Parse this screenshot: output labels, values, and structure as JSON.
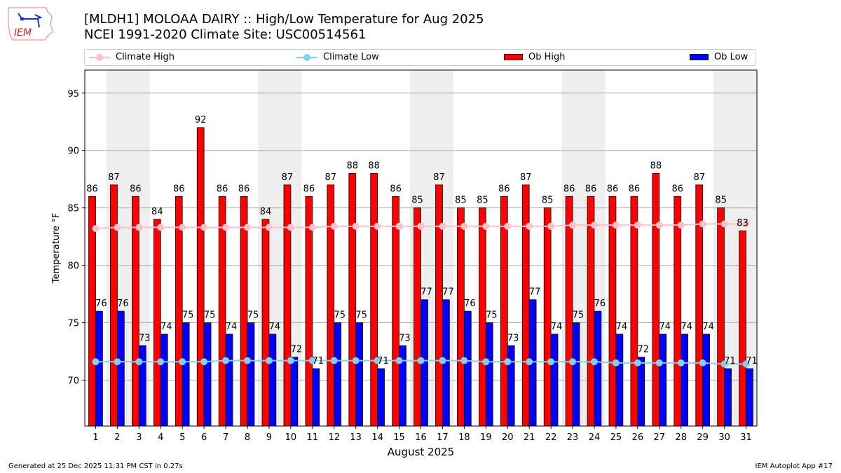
{
  "header": {
    "title_line1": "[MLDH1] MOLOAA DAIRY :: High/Low Temperature for Aug 2025",
    "title_line2": "NCEI 1991-2020 Climate Site: USC00514561",
    "logo_text": "IEM"
  },
  "footer": {
    "generated": "Generated at 25 Dec 2025 11:31 PM CST in 0.27s",
    "app": "IEM Autoplot App #17"
  },
  "colors": {
    "ob_high": "#ff0000",
    "ob_low": "#0000ff",
    "climate_high": "#ffc0cb",
    "climate_low": "#87ceeb",
    "weekend_shade": "#eeeeee",
    "grid": "#b0b0b0"
  },
  "chart_data": {
    "type": "bar",
    "title": "[MLDH1] MOLOAA DAIRY :: High/Low Temperature for Aug 2025",
    "subtitle": "NCEI 1991-2020 Climate Site: USC00514561",
    "xlabel": "August 2025",
    "ylabel": "Temperature °F",
    "xlim": [
      0.5,
      31.5
    ],
    "ylim": [
      66.0,
      97.0
    ],
    "yticks": [
      70,
      75,
      80,
      85,
      90,
      95
    ],
    "grid": "horizontal",
    "legend_position": "top",
    "categories": [
      1,
      2,
      3,
      4,
      5,
      6,
      7,
      8,
      9,
      10,
      11,
      12,
      13,
      14,
      15,
      16,
      17,
      18,
      19,
      20,
      21,
      22,
      23,
      24,
      25,
      26,
      27,
      28,
      29,
      30,
      31
    ],
    "weekend_days": [
      2,
      3,
      9,
      10,
      16,
      17,
      23,
      24,
      30,
      31
    ],
    "series": [
      {
        "name": "Climate High",
        "kind": "line",
        "values": [
          83.2,
          83.3,
          83.3,
          83.3,
          83.3,
          83.3,
          83.3,
          83.3,
          83.3,
          83.3,
          83.3,
          83.4,
          83.4,
          83.4,
          83.4,
          83.4,
          83.4,
          83.4,
          83.4,
          83.4,
          83.4,
          83.4,
          83.5,
          83.5,
          83.5,
          83.5,
          83.5,
          83.5,
          83.6,
          83.6,
          83.6
        ]
      },
      {
        "name": "Climate Low",
        "kind": "line",
        "values": [
          71.6,
          71.6,
          71.6,
          71.6,
          71.6,
          71.6,
          71.7,
          71.7,
          71.7,
          71.7,
          71.7,
          71.7,
          71.7,
          71.7,
          71.7,
          71.7,
          71.7,
          71.7,
          71.6,
          71.6,
          71.6,
          71.6,
          71.6,
          71.6,
          71.5,
          71.5,
          71.5,
          71.5,
          71.5,
          71.4,
          71.4
        ]
      },
      {
        "name": "Ob High",
        "kind": "bar",
        "values": [
          86,
          87,
          86,
          84,
          86,
          92,
          86,
          86,
          84,
          87,
          86,
          87,
          88,
          88,
          86,
          85,
          87,
          85,
          85,
          86,
          87,
          85,
          86,
          86,
          86,
          86,
          88,
          86,
          87,
          85,
          83
        ]
      },
      {
        "name": "Ob Low",
        "kind": "bar",
        "values": [
          76,
          76,
          73,
          74,
          75,
          75,
          74,
          75,
          74,
          72,
          71,
          75,
          75,
          71,
          73,
          77,
          77,
          76,
          75,
          73,
          77,
          74,
          75,
          76,
          74,
          72,
          74,
          74,
          74,
          71,
          71
        ]
      }
    ]
  }
}
